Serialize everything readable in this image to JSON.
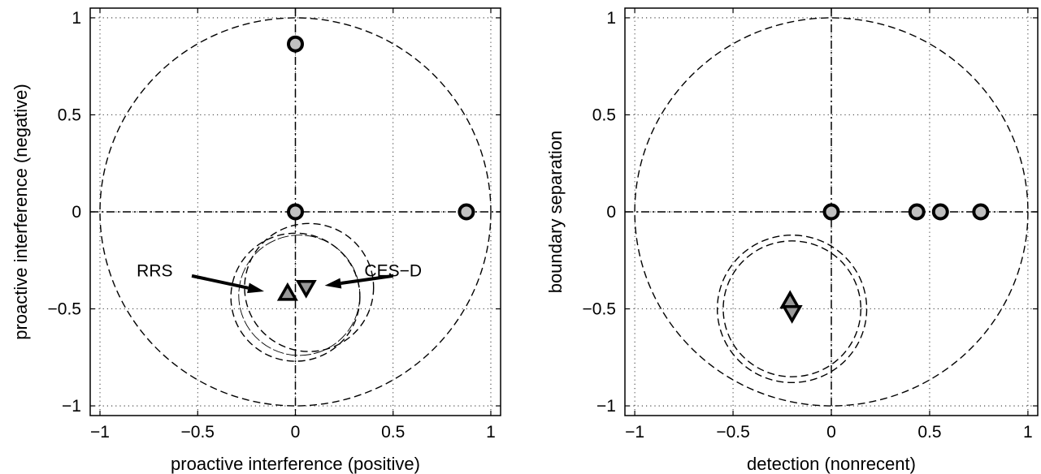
{
  "chart_data": [
    {
      "type": "scatter",
      "xlabel": "proactive interference (positive)",
      "ylabel": "proactive interference (negative)",
      "xlim": [
        -1.05,
        1.05
      ],
      "ylim": [
        -1.05,
        1.05
      ],
      "xticks": [
        -1,
        -0.5,
        0,
        0.5,
        1
      ],
      "yticks": [
        -1,
        -0.5,
        0,
        0.5,
        1
      ],
      "xtick_labels": [
        "−1",
        "−0.5",
        "0",
        "0.5",
        "1"
      ],
      "ytick_labels": [
        "−1",
        "−0.5",
        "0",
        "0.5",
        "1"
      ],
      "grid": true,
      "reference_circles": [
        {
          "cx": 0,
          "cy": 0,
          "r": 1.0,
          "style": "dashed"
        },
        {
          "cx": 0.07,
          "cy": -0.39,
          "r": 0.33,
          "style": "dashed"
        },
        {
          "cx": 0.0,
          "cy": -0.44,
          "r": 0.33,
          "style": "dashed"
        },
        {
          "cx": 0.02,
          "cy": -0.43,
          "r": 0.31,
          "style": "solid-thin"
        }
      ],
      "series": [
        {
          "marker": "circle",
          "color": "#c0c0c0",
          "points": [
            [
              0,
              0.865
            ],
            [
              0,
              0
            ],
            [
              0.875,
              0
            ]
          ]
        },
        {
          "marker": "triangle-up",
          "color": "#999999",
          "points": [
            [
              -0.04,
              -0.42
            ]
          ]
        },
        {
          "marker": "triangle-down",
          "color": "#999999",
          "points": [
            [
              0.055,
              -0.39
            ]
          ]
        }
      ],
      "annotations": [
        {
          "text": "RRS",
          "text_x": -0.72,
          "text_y": -0.3,
          "arrow_from": [
            -0.53,
            -0.33
          ],
          "arrow_to": [
            -0.16,
            -0.41
          ]
        },
        {
          "text": "CES−D",
          "text_x": 0.5,
          "text_y": -0.3,
          "arrow_from": [
            0.5,
            -0.33
          ],
          "arrow_to": [
            0.15,
            -0.38
          ]
        }
      ]
    },
    {
      "type": "scatter",
      "xlabel": "detection (nonrecent)",
      "ylabel": "boundary separation",
      "xlim": [
        -1.05,
        1.05
      ],
      "ylim": [
        -1.05,
        1.05
      ],
      "xticks": [
        -1,
        -0.5,
        0,
        0.5,
        1
      ],
      "yticks": [
        -1,
        -0.5,
        0,
        0.5,
        1
      ],
      "xtick_labels": [
        "−1",
        "−0.5",
        "0",
        "0.5",
        "1"
      ],
      "ytick_labels": [
        "−1",
        "−0.5",
        "0",
        "0.5",
        "1"
      ],
      "grid": true,
      "reference_circles": [
        {
          "cx": 0,
          "cy": 0,
          "r": 1.0,
          "style": "dashed"
        },
        {
          "cx": -0.2,
          "cy": -0.5,
          "r": 0.38,
          "style": "dashed"
        },
        {
          "cx": -0.2,
          "cy": -0.5,
          "r": 0.35,
          "style": "dashed"
        }
      ],
      "series": [
        {
          "marker": "circle",
          "color": "#c0c0c0",
          "points": [
            [
              0,
              0
            ],
            [
              0.435,
              0
            ],
            [
              0.555,
              0
            ],
            [
              0.76,
              0
            ]
          ]
        },
        {
          "marker": "triangle-up",
          "color": "#999999",
          "points": [
            [
              -0.21,
              -0.46
            ]
          ]
        },
        {
          "marker": "triangle-down",
          "color": "#999999",
          "points": [
            [
              -0.2,
              -0.52
            ]
          ]
        }
      ],
      "annotations": []
    }
  ]
}
